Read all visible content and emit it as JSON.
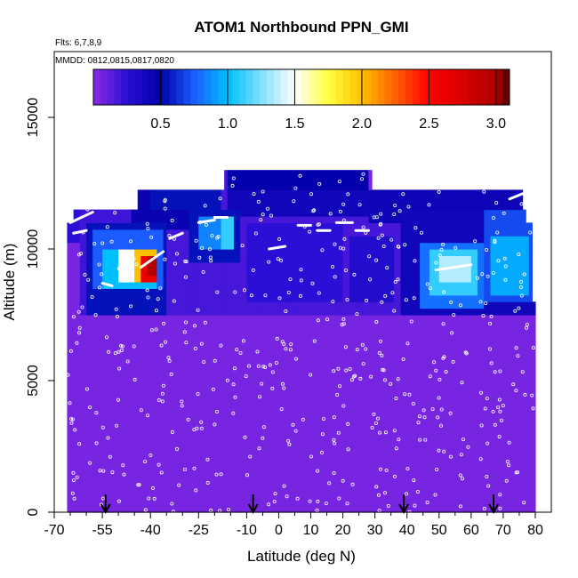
{
  "chart_data": {
    "type": "heatmap",
    "title": "ATOM1 Northbound PPN_GMI",
    "notes": {
      "flights": "Flts: 6,7,8,9",
      "dates": "MMDD: 0812,0815,0817,0820"
    },
    "xlabel": "Latitude (deg N)",
    "ylabel": "Altitude (m)",
    "xlim": [
      -70,
      85
    ],
    "ylim": [
      0,
      17500
    ],
    "x_ticks": [
      -70,
      -55,
      -40,
      -25,
      -10,
      0,
      10,
      20,
      30,
      40,
      50,
      60,
      70,
      80
    ],
    "x_minor_ticks": [
      -65,
      -60,
      -50,
      -45,
      -35,
      -30,
      -20,
      -15,
      -5,
      5,
      15,
      25,
      35,
      45,
      55,
      65,
      75
    ],
    "y_ticks": [
      0,
      5000,
      10000,
      15000
    ],
    "colorbar": {
      "range": [
        0,
        3.1
      ],
      "ticks": [
        0.5,
        1.0,
        1.5,
        2.0,
        2.5,
        3.0
      ],
      "tick_labels": [
        "0.5",
        "1.0",
        "1.5",
        "2.0",
        "2.5",
        "3.0"
      ],
      "colors": [
        [
          0.0,
          "#8a2be2"
        ],
        [
          0.25,
          "#2b0fd6"
        ],
        [
          0.5,
          "#0000a8"
        ],
        [
          0.75,
          "#1a5cff"
        ],
        [
          1.0,
          "#00bfff"
        ],
        [
          1.5,
          "#ffffff"
        ],
        [
          1.75,
          "#ffff40"
        ],
        [
          2.0,
          "#ffc000"
        ],
        [
          2.5,
          "#ff0000"
        ],
        [
          3.0,
          "#b00000"
        ],
        [
          3.1,
          "#4a0000"
        ]
      ]
    },
    "background_value": 0.05,
    "data_top_profile": [
      [
        -70,
        11000
      ],
      [
        -65,
        11000
      ],
      [
        -64,
        11600
      ],
      [
        -45,
        11600
      ],
      [
        -44,
        12200
      ],
      [
        -18,
        12200
      ],
      [
        -17,
        12900
      ],
      [
        28,
        12900
      ],
      [
        29,
        12200
      ],
      [
        75,
        12200
      ],
      [
        76,
        11400
      ],
      [
        77,
        11000
      ],
      [
        79,
        8000
      ],
      [
        81,
        8000
      ]
    ],
    "field_regions": [
      {
        "lat": [
          -66,
          -62
        ],
        "alt": [
          10200,
          11600
        ],
        "value": 0.25
      },
      {
        "lat": [
          -62,
          -45
        ],
        "alt": [
          7500,
          11600
        ],
        "value": 0.2
      },
      {
        "lat": [
          -45,
          -18
        ],
        "alt": [
          7500,
          12200
        ],
        "value": 0.18
      },
      {
        "lat": [
          -18,
          28
        ],
        "alt": [
          7500,
          12900
        ],
        "value": 0.18
      },
      {
        "lat": [
          28,
          77
        ],
        "alt": [
          7500,
          12200
        ],
        "value": 0.18
      },
      {
        "lat": [
          -62,
          -48
        ],
        "alt": [
          8000,
          10000
        ],
        "value": 0.2
      },
      {
        "lat": [
          -46,
          -18
        ],
        "alt": [
          10800,
          12200
        ],
        "value": 0.45
      },
      {
        "lat": [
          -40,
          -18
        ],
        "alt": [
          11500,
          12200
        ],
        "value": 0.55
      },
      {
        "lat": [
          -16,
          28
        ],
        "alt": [
          12200,
          12900
        ],
        "value": 0.48
      },
      {
        "lat": [
          -16,
          28
        ],
        "alt": [
          11200,
          12200
        ],
        "value": 0.4
      },
      {
        "lat": [
          28,
          76
        ],
        "alt": [
          11000,
          12200
        ],
        "value": 0.42
      },
      {
        "lat": [
          -60,
          -35
        ],
        "alt": [
          7500,
          11000
        ],
        "value": 0.55
      },
      {
        "lat": [
          -58,
          -36
        ],
        "alt": [
          8400,
          10800
        ],
        "value": 0.75
      },
      {
        "lat": [
          -55,
          -38
        ],
        "alt": [
          8400,
          10000
        ],
        "value": 1.0
      },
      {
        "lat": [
          -50,
          -38
        ],
        "alt": [
          8700,
          10000
        ],
        "value": 1.5
      },
      {
        "lat": [
          -45,
          -38
        ],
        "alt": [
          8700,
          9900
        ],
        "value": 2.0
      },
      {
        "lat": [
          -43,
          -38
        ],
        "alt": [
          8800,
          9800
        ],
        "value": 2.6
      },
      {
        "lat": [
          -41,
          -38
        ],
        "alt": [
          8900,
          9700
        ],
        "value": 3.0
      },
      {
        "lat": [
          -28,
          -12
        ],
        "alt": [
          9500,
          11500
        ],
        "value": 0.55
      },
      {
        "lat": [
          -25,
          -15
        ],
        "alt": [
          10000,
          11200
        ],
        "value": 0.85
      },
      {
        "lat": [
          -18,
          -14
        ],
        "alt": [
          10000,
          11200
        ],
        "value": 1.1
      },
      {
        "lat": [
          -10,
          20
        ],
        "alt": [
          8000,
          11000
        ],
        "value": 0.25
      },
      {
        "lat": [
          22,
          36
        ],
        "alt": [
          8000,
          10500
        ],
        "value": 0.3
      },
      {
        "lat": [
          38,
          80
        ],
        "alt": [
          7500,
          11500
        ],
        "value": 0.4
      },
      {
        "lat": [
          44,
          64
        ],
        "alt": [
          7800,
          10300
        ],
        "value": 0.8
      },
      {
        "lat": [
          47,
          62
        ],
        "alt": [
          8200,
          10000
        ],
        "value": 1.1
      },
      {
        "lat": [
          50,
          60
        ],
        "alt": [
          8800,
          9800
        ],
        "value": 1.35
      },
      {
        "lat": [
          64,
          80
        ],
        "alt": [
          8000,
          11500
        ],
        "value": 0.7
      },
      {
        "lat": [
          66,
          78
        ],
        "alt": [
          8200,
          10500
        ],
        "value": 0.95
      }
    ],
    "flight_tracks": [
      {
        "lat": [
          -65,
          -58
        ],
        "alt": [
          11000,
          11400
        ]
      },
      {
        "lat": [
          -64,
          -60
        ],
        "alt": [
          10600,
          10700
        ]
      },
      {
        "lat": [
          -43,
          -36
        ],
        "alt": [
          9300,
          9900
        ]
      },
      {
        "lat": [
          -34,
          -30
        ],
        "alt": [
          10400,
          10600
        ]
      },
      {
        "lat": [
          -25,
          -20
        ],
        "alt": [
          11000,
          11100
        ]
      },
      {
        "lat": [
          -20,
          -16
        ],
        "alt": [
          11200,
          11200
        ]
      },
      {
        "lat": [
          -3,
          2
        ],
        "alt": [
          10000,
          10100
        ]
      },
      {
        "lat": [
          6,
          10
        ],
        "alt": [
          10900,
          10900
        ]
      },
      {
        "lat": [
          12,
          16
        ],
        "alt": [
          10700,
          10700
        ]
      },
      {
        "lat": [
          18,
          23
        ],
        "alt": [
          11000,
          11000
        ]
      },
      {
        "lat": [
          24,
          28
        ],
        "alt": [
          10700,
          10700
        ]
      },
      {
        "lat": [
          49,
          60
        ],
        "alt": [
          9200,
          9400
        ]
      },
      {
        "lat": [
          35,
          40
        ],
        "alt": [
          12800,
          12500
        ]
      },
      {
        "lat": [
          -55,
          -52
        ],
        "alt": [
          8700,
          8600
        ]
      },
      {
        "lat": [
          72,
          76
        ],
        "alt": [
          11900,
          12100
        ]
      }
    ],
    "arrows_latitude": [
      -54,
      -8,
      39,
      67
    ]
  }
}
